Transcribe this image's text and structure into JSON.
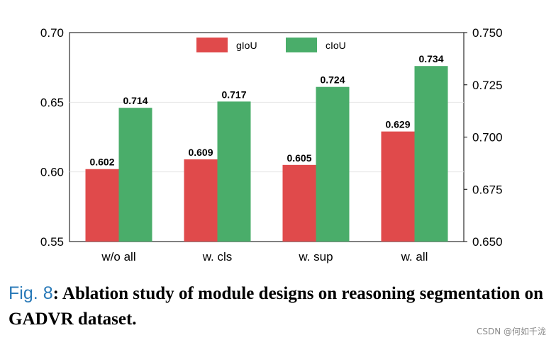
{
  "chart_data": {
    "type": "bar",
    "categories": [
      "w/o all",
      "w. cls",
      "w. sup",
      "w. all"
    ],
    "series": [
      {
        "name": "gIoU",
        "axis": "left",
        "color": "#e04a4b",
        "values": [
          0.602,
          0.609,
          0.605,
          0.629
        ],
        "labels": [
          "0.602",
          "0.609",
          "0.605",
          "0.629"
        ]
      },
      {
        "name": "cIoU",
        "axis": "right",
        "color": "#4aad6a",
        "values": [
          0.714,
          0.717,
          0.724,
          0.734
        ],
        "labels": [
          "0.714",
          "0.717",
          "0.724",
          "0.734"
        ]
      }
    ],
    "legend": [
      "gIoU",
      "cIoU"
    ],
    "legend_position": "top-center",
    "left_axis": {
      "ylim": [
        0.55,
        0.7
      ],
      "ticks": [
        "0.55",
        "0.60",
        "0.65",
        "0.70"
      ]
    },
    "right_axis": {
      "ylim": [
        0.65,
        0.75
      ],
      "ticks": [
        "0.650",
        "0.675",
        "0.700",
        "0.725",
        "0.750"
      ]
    }
  },
  "caption": {
    "fig_label": "Fig. 8",
    "text": ": Ablation study of module designs on reasoning segmentation on GADVR dataset."
  },
  "watermark": "CSDN @何如千泷"
}
